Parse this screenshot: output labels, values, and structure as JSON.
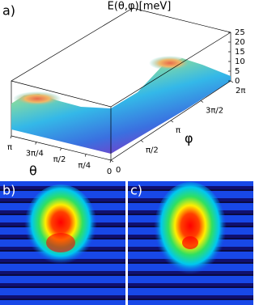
{
  "chart_data": {
    "type": "surface",
    "panel_label": "a)",
    "title": "E(θ,φ)[meV]",
    "xlabel": "φ",
    "ylabel": "θ",
    "xlim": [
      0,
      6.2832
    ],
    "xticks": [
      0,
      {
        "value": 1.5708,
        "label": "π/2"
      },
      {
        "value": 3.1416,
        "label": "π"
      },
      {
        "value": 4.7124,
        "label": "3π/2"
      },
      {
        "value": 6.2832,
        "label": "2π"
      }
    ],
    "ylim": [
      0,
      3.1416
    ],
    "yticks": [
      0,
      {
        "value": 0.7854,
        "label": "π/4"
      },
      {
        "value": 1.5708,
        "label": "π/2"
      },
      {
        "value": 2.3562,
        "label": "3π/4"
      },
      {
        "value": 3.1416,
        "label": "π"
      }
    ],
    "zlim": [
      0,
      25
    ],
    "zticks": [
      0,
      5,
      10,
      15,
      20,
      25
    ]
  },
  "panels": [
    {
      "label": "b)"
    },
    {
      "label": "c)"
    }
  ]
}
